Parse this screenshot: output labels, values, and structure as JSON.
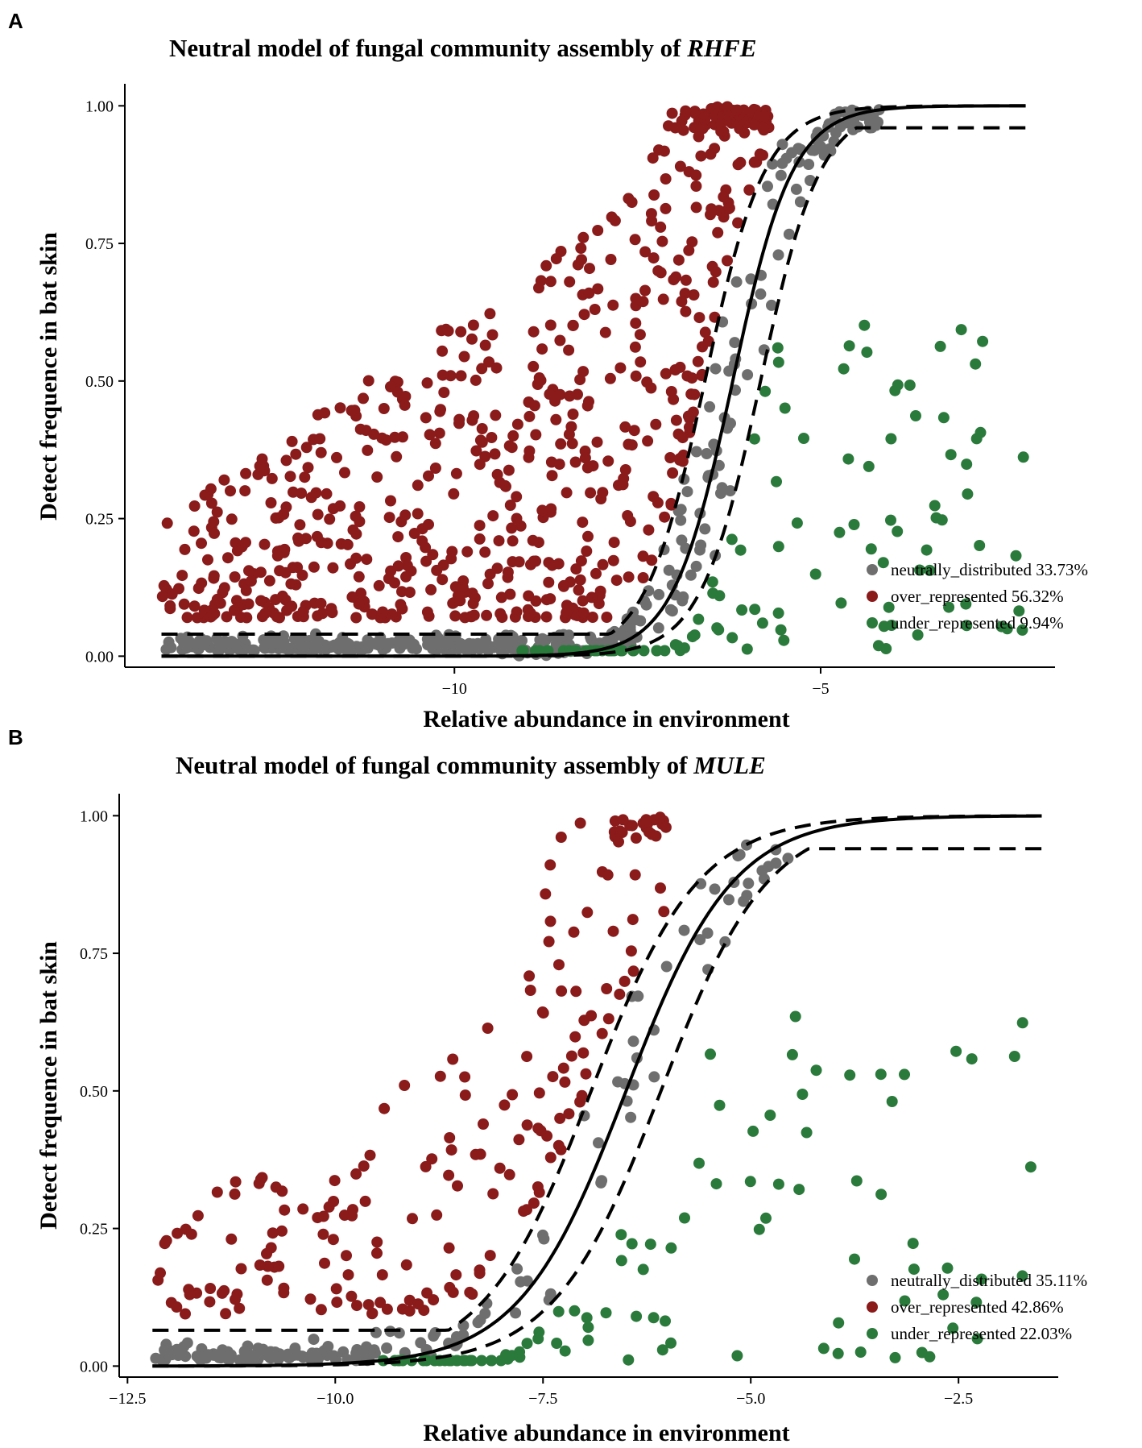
{
  "chart_data": [
    {
      "panel": "A",
      "type": "scatter",
      "title_prefix": "Neutral model of fungal community assembly of ",
      "title_taxon": "RHFE",
      "xlabel": "Relative abundance in  environment",
      "ylabel": "Detect frequence in   bat skin",
      "xlim": [
        -14.5,
        -1.8
      ],
      "ylim": [
        -0.02,
        1.04
      ],
      "xticks": [
        {
          "value": -10,
          "label": "−10"
        },
        {
          "value": -5,
          "label": "−5"
        }
      ],
      "yticks": [
        {
          "value": 0.0,
          "label": "0.00"
        },
        {
          "value": 0.25,
          "label": "0.25"
        },
        {
          "value": 0.5,
          "label": "0.50"
        },
        {
          "value": 0.75,
          "label": "0.75"
        },
        {
          "value": 1.0,
          "label": "1.00"
        }
      ],
      "model": {
        "midpoint": -6.2,
        "slope": 2.45,
        "ci_offset": 0.38,
        "ci_upper_floor": 0.04,
        "ci_lower_ceiling": 0.96,
        "x_start": -14.0,
        "x_end": -2.2
      },
      "series": [
        {
          "key": "neutral",
          "name": "neutrally_distributed",
          "percent": "33.73%",
          "color": "#6e6e6e",
          "count": 390
        },
        {
          "key": "over",
          "name": "over_represented",
          "percent": "56.32%",
          "color": "#8b1a1a",
          "count": 650
        },
        {
          "key": "under",
          "name": "under_represented",
          "percent": "9.94%",
          "color": "#2a7a3b",
          "count": 115
        }
      ],
      "legend_labels": [
        "neutrally_distributed 33.73%",
        "over_represented 56.32%",
        "under_represented 9.94%"
      ]
    },
    {
      "panel": "B",
      "type": "scatter",
      "title_prefix": "Neutral model of fungal community assembly of ",
      "title_taxon": "MULE",
      "xlabel": "Relative abundance in  environment",
      "ylabel": "Detect frequence in   bat skin",
      "xlim": [
        -12.6,
        -1.3
      ],
      "ylim": [
        -0.02,
        1.04
      ],
      "xticks": [
        {
          "value": -12.5,
          "label": "−12.5"
        },
        {
          "value": -10,
          "label": "−10.0"
        },
        {
          "value": -7.5,
          "label": "−7.5"
        },
        {
          "value": -5,
          "label": "−5.0"
        },
        {
          "value": -2.5,
          "label": "−2.5"
        }
      ],
      "yticks": [
        {
          "value": 0.0,
          "label": "0.00"
        },
        {
          "value": 0.25,
          "label": "0.25"
        },
        {
          "value": 0.5,
          "label": "0.50"
        },
        {
          "value": 0.75,
          "label": "0.75"
        },
        {
          "value": 1.0,
          "label": "1.00"
        }
      ],
      "model": {
        "midpoint": -6.5,
        "slope": 1.55,
        "ci_offset": 0.42,
        "ci_upper_floor": 0.065,
        "ci_lower_ceiling": 0.94,
        "x_start": -12.2,
        "x_end": -1.5
      },
      "series": [
        {
          "key": "neutral",
          "name": "neutrally_distributed",
          "percent": "35.11%",
          "color": "#6e6e6e",
          "count": 160
        },
        {
          "key": "over",
          "name": "over_represented",
          "percent": "42.86%",
          "color": "#8b1a1a",
          "count": 195
        },
        {
          "key": "under",
          "name": "under_represented",
          "percent": "22.03%",
          "color": "#2a7a3b",
          "count": 100
        }
      ],
      "legend_labels": [
        "neutrally_distributed 35.11%",
        "over_represented 42.86%",
        "under_represented 22.03%"
      ]
    }
  ]
}
